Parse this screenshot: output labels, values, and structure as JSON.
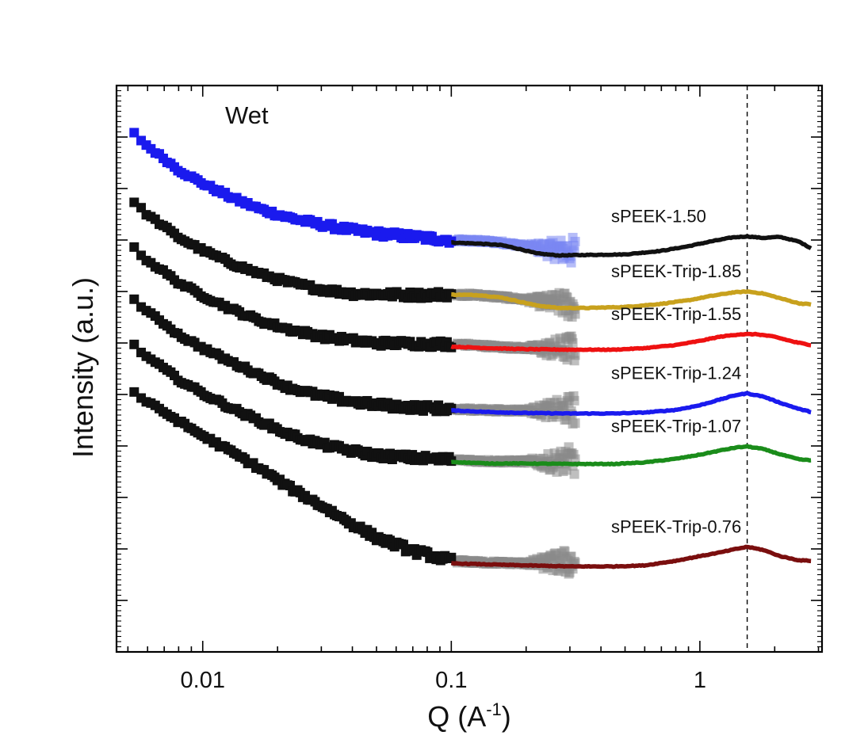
{
  "chart_data": {
    "type": "line",
    "title": "",
    "xlabel_main": "Q (A",
    "xlabel_sup": "-1",
    "xlabel_end": ")",
    "ylabel": "Intensity (a.u.)",
    "xscale": "log",
    "xlim": [
      0.0045,
      3.1
    ],
    "ylim": [
      0,
      11
    ],
    "x_ticks": [
      {
        "value": 0.01,
        "label": "0.01"
      },
      {
        "value": 0.1,
        "label": "0.1"
      },
      {
        "value": 1,
        "label": "1"
      }
    ],
    "y_major_ticks": [
      1,
      2,
      3,
      4,
      5,
      6,
      7,
      8,
      9,
      10
    ],
    "yticklabels": "hidden",
    "annotation": "Wet",
    "reference_line_x": 1.55,
    "colors": {
      "sax_black": "#111111",
      "sax_blue": "#1a1aee",
      "overlap_gray": "#8a8a8a",
      "overlap_blue": "#7a86f2",
      "dashed": "#000000",
      "axis": "#000000"
    },
    "series": [
      {
        "name": "sPEEK-1.50",
        "color": "#111111",
        "label_pos_x": 0.42,
        "sax_color": "#1a1aee",
        "sax_points": [
          [
            0.0053,
            10.07
          ],
          [
            0.006,
            9.82
          ],
          [
            0.007,
            9.58
          ],
          [
            0.008,
            9.36
          ],
          [
            0.01,
            9.1
          ],
          [
            0.013,
            8.83
          ],
          [
            0.017,
            8.6
          ],
          [
            0.022,
            8.44
          ],
          [
            0.03,
            8.3
          ],
          [
            0.04,
            8.19
          ],
          [
            0.05,
            8.13
          ],
          [
            0.07,
            8.06
          ],
          [
            0.09,
            8.02
          ],
          [
            0.1,
            8.0
          ]
        ],
        "overlap_points": [
          [
            0.11,
            7.99
          ],
          [
            0.13,
            7.98
          ],
          [
            0.16,
            7.95
          ],
          [
            0.2,
            7.88
          ],
          [
            0.25,
            7.82
          ],
          [
            0.28,
            7.8
          ],
          [
            0.31,
            7.77
          ]
        ],
        "waxs_curve": [
          [
            0.1,
            7.95
          ],
          [
            0.13,
            7.93
          ],
          [
            0.16,
            7.9
          ],
          [
            0.19,
            7.82
          ],
          [
            0.22,
            7.74
          ],
          [
            0.27,
            7.7
          ],
          [
            0.35,
            7.71
          ],
          [
            0.5,
            7.72
          ],
          [
            0.7,
            7.79
          ],
          [
            0.9,
            7.88
          ],
          [
            1.1,
            7.97
          ],
          [
            1.35,
            8.05
          ],
          [
            1.55,
            8.07
          ],
          [
            1.8,
            8.04
          ],
          [
            2.1,
            8.06
          ],
          [
            2.5,
            7.97
          ],
          [
            2.8,
            7.84
          ]
        ]
      },
      {
        "name": "sPEEK-Trip-1.85",
        "color": "#c8a11d",
        "label_pos_x": 0.42,
        "sax_color": "#111111",
        "sax_points": [
          [
            0.0053,
            8.73
          ],
          [
            0.006,
            8.49
          ],
          [
            0.007,
            8.26
          ],
          [
            0.008,
            8.05
          ],
          [
            0.01,
            7.8
          ],
          [
            0.013,
            7.55
          ],
          [
            0.017,
            7.34
          ],
          [
            0.022,
            7.18
          ],
          [
            0.03,
            7.04
          ],
          [
            0.04,
            6.96
          ],
          [
            0.05,
            6.95
          ],
          [
            0.07,
            6.93
          ],
          [
            0.09,
            6.94
          ],
          [
            0.1,
            6.95
          ]
        ],
        "overlap_points": [
          [
            0.11,
            6.94
          ],
          [
            0.13,
            6.93
          ],
          [
            0.16,
            6.89
          ],
          [
            0.2,
            6.84
          ],
          [
            0.24,
            6.79
          ],
          [
            0.28,
            6.76
          ],
          [
            0.31,
            6.74
          ]
        ],
        "waxs_curve": [
          [
            0.1,
            6.94
          ],
          [
            0.13,
            6.93
          ],
          [
            0.16,
            6.88
          ],
          [
            0.19,
            6.8
          ],
          [
            0.22,
            6.73
          ],
          [
            0.27,
            6.68
          ],
          [
            0.35,
            6.68
          ],
          [
            0.5,
            6.7
          ],
          [
            0.7,
            6.76
          ],
          [
            0.9,
            6.83
          ],
          [
            1.1,
            6.91
          ],
          [
            1.35,
            6.98
          ],
          [
            1.55,
            7.0
          ],
          [
            1.8,
            6.96
          ],
          [
            2.1,
            6.87
          ],
          [
            2.5,
            6.77
          ],
          [
            2.8,
            6.75
          ]
        ]
      },
      {
        "name": "sPEEK-Trip-1.55",
        "color": "#ee1111",
        "label_pos_x": 0.42,
        "sax_color": "#111111",
        "sax_points": [
          [
            0.0053,
            7.84
          ],
          [
            0.006,
            7.6
          ],
          [
            0.007,
            7.38
          ],
          [
            0.008,
            7.17
          ],
          [
            0.01,
            6.92
          ],
          [
            0.013,
            6.66
          ],
          [
            0.017,
            6.43
          ],
          [
            0.022,
            6.27
          ],
          [
            0.03,
            6.13
          ],
          [
            0.04,
            6.05
          ],
          [
            0.05,
            6.0
          ],
          [
            0.07,
            5.99
          ],
          [
            0.09,
            5.98
          ],
          [
            0.1,
            5.98
          ]
        ],
        "overlap_points": [
          [
            0.11,
            5.97
          ],
          [
            0.13,
            5.95
          ],
          [
            0.16,
            5.92
          ],
          [
            0.2,
            5.9
          ],
          [
            0.24,
            5.89
          ],
          [
            0.28,
            5.89
          ],
          [
            0.31,
            5.9
          ]
        ],
        "waxs_curve": [
          [
            0.1,
            5.93
          ],
          [
            0.14,
            5.9
          ],
          [
            0.2,
            5.88
          ],
          [
            0.3,
            5.87
          ],
          [
            0.45,
            5.87
          ],
          [
            0.6,
            5.9
          ],
          [
            0.8,
            5.96
          ],
          [
            1.0,
            6.04
          ],
          [
            1.2,
            6.12
          ],
          [
            1.45,
            6.17
          ],
          [
            1.7,
            6.17
          ],
          [
            2.0,
            6.12
          ],
          [
            2.4,
            6.02
          ],
          [
            2.8,
            5.96
          ]
        ]
      },
      {
        "name": "sPEEK-Trip-1.24",
        "color": "#1a1aee",
        "label_pos_x": 0.42,
        "sax_color": "#111111",
        "sax_points": [
          [
            0.0053,
            6.84
          ],
          [
            0.006,
            6.6
          ],
          [
            0.007,
            6.38
          ],
          [
            0.008,
            6.16
          ],
          [
            0.01,
            5.9
          ],
          [
            0.013,
            5.63
          ],
          [
            0.017,
            5.38
          ],
          [
            0.022,
            5.14
          ],
          [
            0.03,
            4.97
          ],
          [
            0.04,
            4.86
          ],
          [
            0.05,
            4.8
          ],
          [
            0.07,
            4.75
          ],
          [
            0.09,
            4.73
          ],
          [
            0.1,
            4.72
          ]
        ],
        "overlap_points": [
          [
            0.11,
            4.71
          ],
          [
            0.13,
            4.7
          ],
          [
            0.16,
            4.69
          ],
          [
            0.2,
            4.69
          ],
          [
            0.24,
            4.69
          ],
          [
            0.28,
            4.7
          ],
          [
            0.31,
            4.71
          ]
        ],
        "waxs_curve": [
          [
            0.1,
            4.69
          ],
          [
            0.14,
            4.66
          ],
          [
            0.2,
            4.64
          ],
          [
            0.3,
            4.63
          ],
          [
            0.45,
            4.63
          ],
          [
            0.6,
            4.65
          ],
          [
            0.8,
            4.7
          ],
          [
            1.0,
            4.79
          ],
          [
            1.2,
            4.9
          ],
          [
            1.4,
            4.99
          ],
          [
            1.55,
            5.02
          ],
          [
            1.8,
            4.96
          ],
          [
            2.1,
            4.84
          ],
          [
            2.5,
            4.72
          ],
          [
            2.8,
            4.66
          ]
        ]
      },
      {
        "name": "sPEEK-Trip-1.07",
        "color": "#1a8c1a",
        "label_pos_x": 0.42,
        "sax_color": "#111111",
        "sax_points": [
          [
            0.0053,
            5.95
          ],
          [
            0.006,
            5.72
          ],
          [
            0.007,
            5.5
          ],
          [
            0.008,
            5.29
          ],
          [
            0.01,
            5.02
          ],
          [
            0.013,
            4.74
          ],
          [
            0.017,
            4.48
          ],
          [
            0.022,
            4.23
          ],
          [
            0.03,
            4.03
          ],
          [
            0.04,
            3.9
          ],
          [
            0.05,
            3.82
          ],
          [
            0.07,
            3.77
          ],
          [
            0.09,
            3.74
          ],
          [
            0.1,
            3.73
          ]
        ],
        "overlap_points": [
          [
            0.11,
            3.72
          ],
          [
            0.13,
            3.71
          ],
          [
            0.16,
            3.7
          ],
          [
            0.2,
            3.7
          ],
          [
            0.24,
            3.69
          ],
          [
            0.28,
            3.7
          ],
          [
            0.31,
            3.72
          ]
        ],
        "waxs_curve": [
          [
            0.1,
            3.69
          ],
          [
            0.14,
            3.66
          ],
          [
            0.2,
            3.66
          ],
          [
            0.3,
            3.65
          ],
          [
            0.45,
            3.65
          ],
          [
            0.6,
            3.68
          ],
          [
            0.8,
            3.75
          ],
          [
            1.0,
            3.83
          ],
          [
            1.2,
            3.91
          ],
          [
            1.4,
            3.97
          ],
          [
            1.55,
            3.99
          ],
          [
            1.8,
            3.94
          ],
          [
            2.1,
            3.84
          ],
          [
            2.5,
            3.74
          ],
          [
            2.8,
            3.72
          ]
        ]
      },
      {
        "name": "sPEEK-Trip-0.76",
        "color": "#7a0e0e",
        "label_pos_x": 0.42,
        "sax_color": "#111111",
        "sax_points": [
          [
            0.0053,
            5.04
          ],
          [
            0.006,
            4.85
          ],
          [
            0.007,
            4.66
          ],
          [
            0.008,
            4.48
          ],
          [
            0.01,
            4.2
          ],
          [
            0.013,
            3.89
          ],
          [
            0.017,
            3.56
          ],
          [
            0.022,
            3.21
          ],
          [
            0.03,
            2.84
          ],
          [
            0.04,
            2.48
          ],
          [
            0.05,
            2.22
          ],
          [
            0.07,
            1.96
          ],
          [
            0.09,
            1.83
          ],
          [
            0.1,
            1.77
          ]
        ],
        "overlap_points": [
          [
            0.11,
            1.76
          ],
          [
            0.13,
            1.74
          ],
          [
            0.16,
            1.73
          ],
          [
            0.2,
            1.72
          ],
          [
            0.24,
            1.73
          ],
          [
            0.28,
            1.74
          ],
          [
            0.31,
            1.75
          ]
        ],
        "waxs_curve": [
          [
            0.1,
            1.72
          ],
          [
            0.14,
            1.7
          ],
          [
            0.2,
            1.68
          ],
          [
            0.3,
            1.66
          ],
          [
            0.45,
            1.66
          ],
          [
            0.6,
            1.68
          ],
          [
            0.8,
            1.77
          ],
          [
            1.0,
            1.86
          ],
          [
            1.2,
            1.93
          ],
          [
            1.4,
            2.0
          ],
          [
            1.55,
            2.04
          ],
          [
            1.8,
            1.98
          ],
          [
            2.1,
            1.86
          ],
          [
            2.5,
            1.78
          ],
          [
            2.8,
            1.77
          ]
        ]
      }
    ]
  }
}
